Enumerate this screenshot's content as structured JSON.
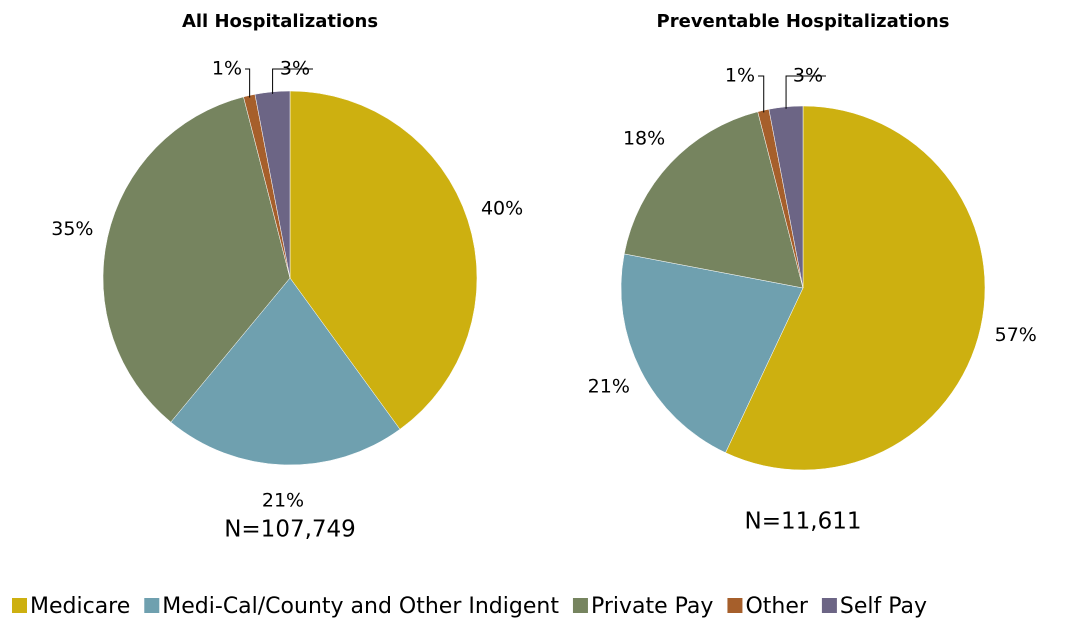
{
  "chart_data": [
    {
      "type": "pie",
      "title": "All Hospitalizations",
      "categories": [
        "Medicare",
        "Medi-Cal/County and Other Indigent",
        "Private Pay",
        "Other",
        "Self Pay"
      ],
      "values": [
        40,
        21,
        35,
        1,
        3
      ],
      "value_labels": [
        "40%",
        "21%",
        "35%",
        "1%",
        "3%"
      ],
      "colors": [
        "#CDB010",
        "#6FA0AF",
        "#76845F",
        "#A65F2B",
        "#6C6585"
      ],
      "note": "N=107,749"
    },
    {
      "type": "pie",
      "title": "Preventable Hospitalizations",
      "categories": [
        "Medicare",
        "Medi-Cal/County and Other Indigent",
        "Private Pay",
        "Other",
        "Self Pay"
      ],
      "values": [
        57,
        21,
        18,
        1,
        3
      ],
      "value_labels": [
        "57%",
        "21%",
        "18%",
        "1%",
        "3%"
      ],
      "colors": [
        "#CDB010",
        "#6FA0AF",
        "#76845F",
        "#A65F2B",
        "#6C6585"
      ],
      "note": "N=11,611"
    }
  ]
}
